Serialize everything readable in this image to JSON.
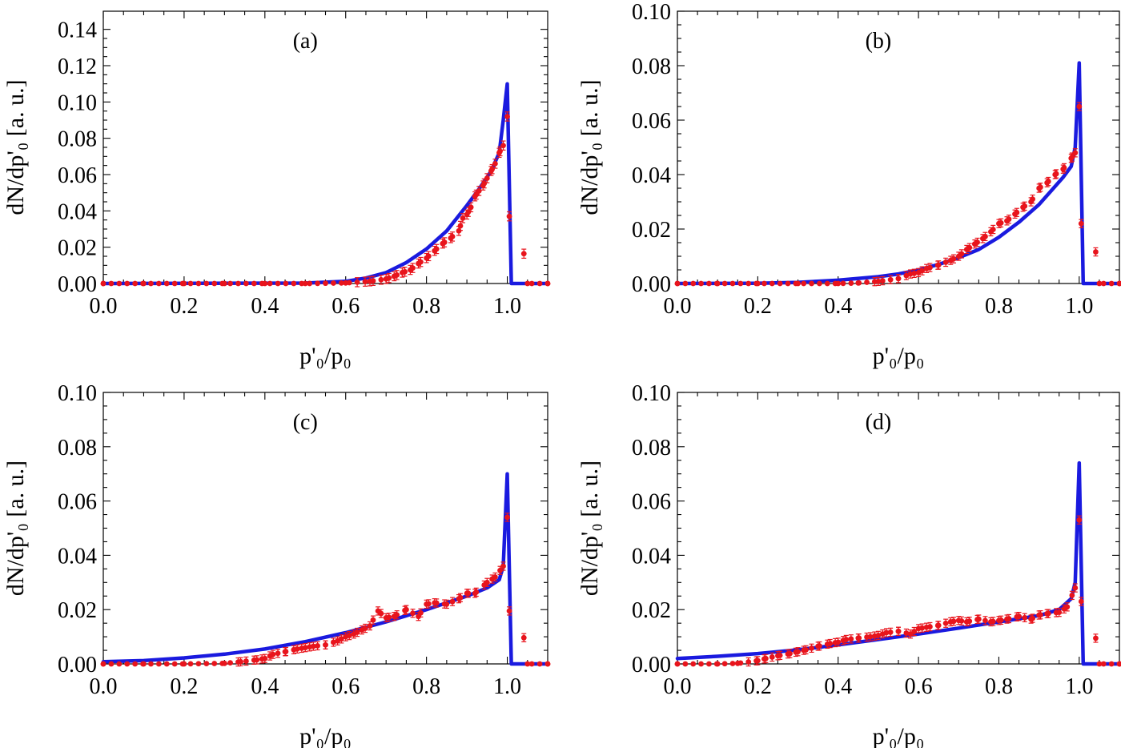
{
  "colors": {
    "model": "#1a1adf",
    "data": "#e8141c",
    "axis": "#000000"
  },
  "chart_data": [
    {
      "type": "line",
      "panel_label": "(a)",
      "xlabel": "p'₀/p₀",
      "ylabel": "dN/dp'₀ [a. u.]",
      "xlim": [
        0,
        1.1
      ],
      "ylim": [
        0,
        0.15
      ],
      "x_ticks": [
        0.0,
        0.2,
        0.4,
        0.6,
        0.8,
        1.0
      ],
      "x_tick_labels": [
        "0.0",
        "0.2",
        "0.4",
        "0.6",
        "0.8",
        "1.0"
      ],
      "y_ticks": [
        0.0,
        0.02,
        0.04,
        0.06,
        0.08,
        0.1,
        0.12,
        0.14
      ],
      "y_tick_labels": [
        "0.00",
        "0.02",
        "0.04",
        "0.06",
        "0.08",
        "0.10",
        "0.12",
        "0.14"
      ],
      "series": [
        {
          "kind": "line",
          "x": [
            0.0,
            0.5,
            0.6,
            0.65,
            0.7,
            0.75,
            0.8,
            0.85,
            0.9,
            0.93,
            0.96,
            0.98,
            0.99,
            1.0,
            1.01,
            1.1
          ],
          "y": [
            0.0,
            0.0002,
            0.0012,
            0.003,
            0.006,
            0.0115,
            0.019,
            0.029,
            0.043,
            0.052,
            0.062,
            0.072,
            0.09,
            0.11,
            0.0,
            0.0
          ]
        },
        {
          "kind": "scatter",
          "x": [
            0.0,
            0.1,
            0.2,
            0.3,
            0.4,
            0.5,
            0.6,
            0.66,
            0.7,
            0.72,
            0.74,
            0.76,
            0.78,
            0.8,
            0.82,
            0.84,
            0.86,
            0.88,
            0.89,
            0.9,
            0.91,
            0.92,
            0.93,
            0.94,
            0.95,
            0.96,
            0.97,
            0.98,
            0.99,
            1.0,
            1.05,
            1.1
          ],
          "y": [
            0.0,
            0.0,
            0.0,
            0.0,
            0.0,
            0.0,
            0.0003,
            0.0012,
            0.0025,
            0.004,
            0.006,
            0.0075,
            0.011,
            0.014,
            0.018,
            0.022,
            0.025,
            0.029,
            0.036,
            0.038,
            0.042,
            0.048,
            0.051,
            0.054,
            0.058,
            0.062,
            0.066,
            0.072,
            0.076,
            0.092,
            0.0,
            0.0
          ],
          "extra_points": [
            [
              1.005,
              0.037
            ]
          ],
          "error": 0.0025
        }
      ]
    },
    {
      "type": "line",
      "panel_label": "(b)",
      "xlabel": "p'₀/p₀",
      "ylabel": "dN/dp'₀ [a. u.]",
      "xlim": [
        0,
        1.1
      ],
      "ylim": [
        0,
        0.1
      ],
      "x_ticks": [
        0.0,
        0.2,
        0.4,
        0.6,
        0.8,
        1.0
      ],
      "x_tick_labels": [
        "0.0",
        "0.2",
        "0.4",
        "0.6",
        "0.8",
        "1.0"
      ],
      "y_ticks": [
        0.0,
        0.02,
        0.04,
        0.06,
        0.08,
        0.1
      ],
      "y_tick_labels": [
        "0.00",
        "0.02",
        "0.04",
        "0.06",
        "0.08",
        "0.10"
      ],
      "series": [
        {
          "kind": "line",
          "x": [
            0.0,
            0.2,
            0.3,
            0.4,
            0.5,
            0.55,
            0.6,
            0.65,
            0.7,
            0.75,
            0.8,
            0.85,
            0.9,
            0.93,
            0.96,
            0.98,
            0.99,
            1.0,
            1.01,
            1.1
          ],
          "y": [
            0.0,
            0.0001,
            0.0004,
            0.0012,
            0.0025,
            0.0035,
            0.005,
            0.007,
            0.0095,
            0.0125,
            0.017,
            0.0225,
            0.029,
            0.034,
            0.039,
            0.043,
            0.05,
            0.081,
            0.0,
            0.0
          ]
        },
        {
          "kind": "scatter",
          "x": [
            0.0,
            0.1,
            0.2,
            0.3,
            0.4,
            0.45,
            0.5,
            0.55,
            0.58,
            0.6,
            0.62,
            0.65,
            0.68,
            0.7,
            0.72,
            0.74,
            0.76,
            0.78,
            0.8,
            0.82,
            0.84,
            0.86,
            0.88,
            0.9,
            0.92,
            0.94,
            0.96,
            0.98,
            0.99,
            1.0,
            1.05,
            1.1
          ],
          "y": [
            0.0,
            0.0,
            0.0,
            0.0,
            0.0,
            0.0002,
            0.0008,
            0.0018,
            0.0035,
            0.004,
            0.0055,
            0.0068,
            0.0085,
            0.01,
            0.0125,
            0.0145,
            0.0165,
            0.019,
            0.022,
            0.023,
            0.0255,
            0.028,
            0.03,
            0.035,
            0.037,
            0.04,
            0.042,
            0.046,
            0.048,
            0.065,
            0.0,
            0.0
          ],
          "extra_points": [
            [
              1.005,
              0.022
            ]
          ],
          "error": 0.0015
        }
      ]
    },
    {
      "type": "line",
      "panel_label": "(c)",
      "xlabel": "p'₀/p₀",
      "ylabel": "dN/dp'₀ [a. u.]",
      "xlim": [
        0,
        1.1
      ],
      "ylim": [
        0,
        0.1
      ],
      "x_ticks": [
        0.0,
        0.2,
        0.4,
        0.6,
        0.8,
        1.0
      ],
      "x_tick_labels": [
        "0.0",
        "0.2",
        "0.4",
        "0.6",
        "0.8",
        "1.0"
      ],
      "y_ticks": [
        0.0,
        0.02,
        0.04,
        0.06,
        0.08,
        0.1
      ],
      "y_tick_labels": [
        "0.00",
        "0.02",
        "0.04",
        "0.06",
        "0.08",
        "0.10"
      ],
      "series": [
        {
          "kind": "line",
          "x": [
            0.0,
            0.1,
            0.2,
            0.3,
            0.4,
            0.5,
            0.6,
            0.7,
            0.8,
            0.9,
            0.95,
            0.98,
            0.99,
            1.0,
            1.01,
            1.1
          ],
          "y": [
            0.0008,
            0.0012,
            0.0022,
            0.0036,
            0.0055,
            0.0082,
            0.0115,
            0.0155,
            0.02,
            0.025,
            0.028,
            0.031,
            0.036,
            0.07,
            0.0,
            0.0
          ]
        },
        {
          "kind": "scatter",
          "x": [
            0.0,
            0.1,
            0.2,
            0.3,
            0.34,
            0.38,
            0.4,
            0.42,
            0.45,
            0.48,
            0.5,
            0.52,
            0.55,
            0.58,
            0.6,
            0.62,
            0.64,
            0.66,
            0.68,
            0.7,
            0.72,
            0.75,
            0.78,
            0.8,
            0.82,
            0.85,
            0.88,
            0.9,
            0.92,
            0.95,
            0.97,
            0.99,
            1.0,
            1.05,
            1.1
          ],
          "y": [
            0.0,
            0.0,
            0.0,
            0.0002,
            0.0008,
            0.0015,
            0.002,
            0.0035,
            0.0045,
            0.0055,
            0.006,
            0.0065,
            0.007,
            0.0085,
            0.01,
            0.011,
            0.0125,
            0.014,
            0.0195,
            0.017,
            0.0175,
            0.02,
            0.0175,
            0.022,
            0.0225,
            0.022,
            0.024,
            0.026,
            0.026,
            0.03,
            0.032,
            0.036,
            0.054,
            0.0,
            0.0
          ],
          "extra_points": [
            [
              1.005,
              0.0195
            ]
          ],
          "error": 0.0015
        }
      ]
    },
    {
      "type": "line",
      "panel_label": "(d)",
      "xlabel": "p'₀/p₀",
      "ylabel": "dN/dp'₀ [a. u.]",
      "xlim": [
        0,
        1.1
      ],
      "ylim": [
        0,
        0.1
      ],
      "x_ticks": [
        0.0,
        0.2,
        0.4,
        0.6,
        0.8,
        1.0
      ],
      "x_tick_labels": [
        "0.0",
        "0.2",
        "0.4",
        "0.6",
        "0.8",
        "1.0"
      ],
      "y_ticks": [
        0.0,
        0.02,
        0.04,
        0.06,
        0.08,
        0.1
      ],
      "y_tick_labels": [
        "0.00",
        "0.02",
        "0.04",
        "0.06",
        "0.08",
        "0.10"
      ],
      "series": [
        {
          "kind": "line",
          "x": [
            0.0,
            0.1,
            0.2,
            0.3,
            0.4,
            0.5,
            0.6,
            0.7,
            0.8,
            0.9,
            0.95,
            0.98,
            0.99,
            1.0,
            1.01,
            1.1
          ],
          "y": [
            0.002,
            0.0028,
            0.0038,
            0.0052,
            0.007,
            0.009,
            0.011,
            0.0132,
            0.0155,
            0.0178,
            0.02,
            0.024,
            0.03,
            0.074,
            0.0,
            0.0
          ]
        },
        {
          "kind": "scatter",
          "x": [
            0.0,
            0.1,
            0.15,
            0.2,
            0.22,
            0.25,
            0.28,
            0.3,
            0.32,
            0.35,
            0.38,
            0.4,
            0.42,
            0.45,
            0.48,
            0.5,
            0.52,
            0.55,
            0.58,
            0.6,
            0.62,
            0.65,
            0.68,
            0.7,
            0.72,
            0.75,
            0.78,
            0.8,
            0.82,
            0.85,
            0.88,
            0.9,
            0.92,
            0.95,
            0.97,
            0.99,
            1.0,
            1.05,
            1.1
          ],
          "y": [
            0.0,
            0.0,
            0.0002,
            0.0012,
            0.002,
            0.003,
            0.0038,
            0.0045,
            0.0052,
            0.0065,
            0.0075,
            0.008,
            0.009,
            0.0095,
            0.01,
            0.0105,
            0.0115,
            0.012,
            0.011,
            0.013,
            0.0135,
            0.0142,
            0.0155,
            0.016,
            0.0155,
            0.0165,
            0.0155,
            0.016,
            0.0165,
            0.0175,
            0.0165,
            0.018,
            0.0185,
            0.019,
            0.021,
            0.028,
            0.053,
            0.0,
            0.0
          ],
          "extra_points": [
            [
              1.005,
              0.023
            ]
          ],
          "error": 0.0015
        }
      ]
    }
  ]
}
